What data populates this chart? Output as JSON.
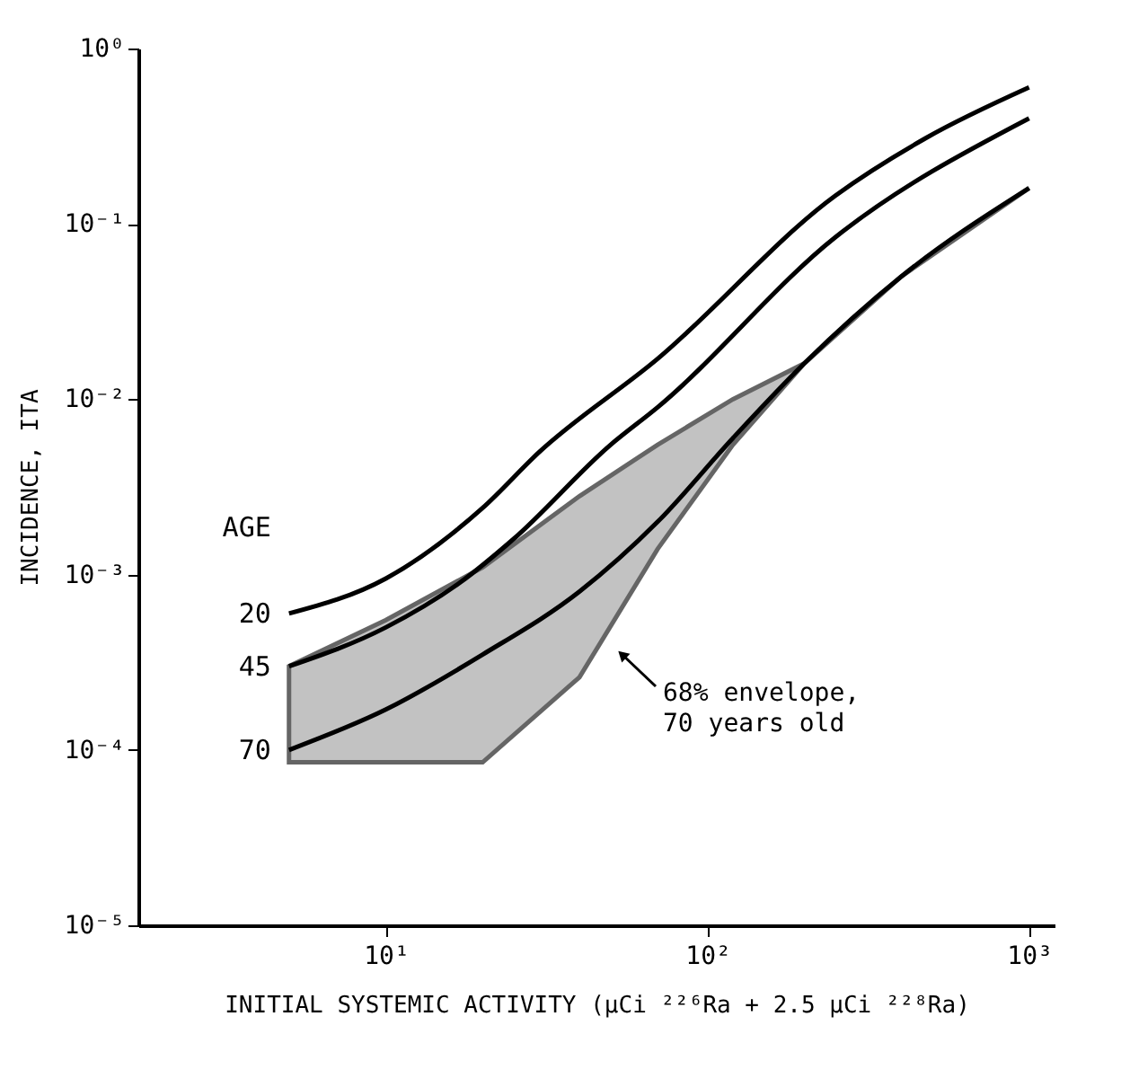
{
  "chart_data": {
    "type": "line",
    "xlabel": "INITIAL SYSTEMIC ACTIVITY (µCi ²²⁶Ra + 2.5 µCi ²²⁸Ra)",
    "ylabel": "INCIDENCE, ITA",
    "legend_title": "AGE",
    "log": "xy",
    "grid": false,
    "legend": false,
    "marker": "none",
    "line_style": "solid",
    "xlim": [
      1.7,
      1200
    ],
    "ylim": [
      1e-05,
      1
    ],
    "xticks": [
      {
        "value": 10,
        "label": "10¹"
      },
      {
        "value": 100,
        "label": "10²"
      },
      {
        "value": 1000,
        "label": "10³"
      }
    ],
    "yticks": [
      {
        "value": 1e-05,
        "label": "10⁻⁵"
      },
      {
        "value": 0.0001,
        "label": "10⁻⁴"
      },
      {
        "value": 0.001,
        "label": "10⁻³"
      },
      {
        "value": 0.01,
        "label": "10⁻²"
      },
      {
        "value": 0.1,
        "label": "10⁻¹"
      },
      {
        "value": 1,
        "label": "10⁰"
      }
    ],
    "series": [
      {
        "name": "20",
        "color": "#000000",
        "x": [
          5,
          10,
          20,
          30,
          70,
          250,
          480,
          1000
        ],
        "values": [
          0.0006,
          0.00095,
          0.0024,
          0.005,
          0.017,
          0.145,
          0.31,
          0.6
        ]
      },
      {
        "name": "45",
        "color": "#000000",
        "x": [
          5,
          10,
          17,
          25,
          50,
          70,
          250,
          1000
        ],
        "values": [
          0.0003,
          0.0005,
          0.0009,
          0.0016,
          0.0055,
          0.009,
          0.084,
          0.4
        ]
      },
      {
        "name": "70",
        "color": "#000000",
        "x": [
          5,
          10,
          20,
          40,
          70,
          120,
          200,
          400,
          1000
        ],
        "values": [
          0.0001,
          0.00017,
          0.00035,
          0.0008,
          0.002,
          0.006,
          0.016,
          0.05,
          0.16
        ],
        "lower": [
          8.5e-05,
          8.5e-05,
          8.5e-05,
          0.00026,
          0.0014,
          0.0055,
          0.016,
          0.05,
          0.16
        ],
        "upper": [
          0.0003,
          0.00055,
          0.0011,
          0.0028,
          0.0055,
          0.01,
          0.016,
          0.05,
          0.16
        ]
      }
    ],
    "annotations": [
      "68% envelope,\n70 years old"
    ]
  }
}
